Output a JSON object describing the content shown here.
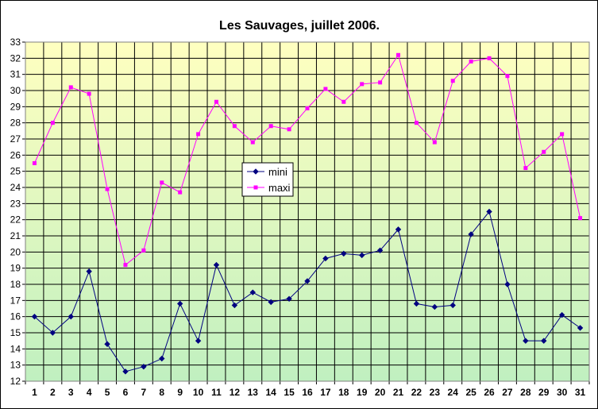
{
  "chart_data": {
    "type": "line",
    "title": "Les Sauvages, juillet 2006.",
    "xlabel": "",
    "ylabel": "",
    "x": [
      "1",
      "2",
      "3",
      "4",
      "5",
      "6",
      "7",
      "8",
      "9",
      "10",
      "11",
      "12",
      "13",
      "14",
      "15",
      "16",
      "17",
      "18",
      "19",
      "20",
      "21",
      "22",
      "23",
      "24",
      "25",
      "26",
      "27",
      "28",
      "29",
      "30",
      "31"
    ],
    "ylim": [
      12,
      33
    ],
    "y_ticks": [
      "12",
      "13",
      "14",
      "15",
      "16",
      "17",
      "18",
      "19",
      "20",
      "21",
      "22",
      "23",
      "24",
      "25",
      "26",
      "27",
      "28",
      "29",
      "30",
      "31",
      "32",
      "33"
    ],
    "grid": true,
    "legend_position": "center-left",
    "background_gradient": [
      "#FFFFC0",
      "#C0F0C0"
    ],
    "series": [
      {
        "name": "mini",
        "color": "#000080",
        "marker": "diamond",
        "values": [
          16.0,
          15.0,
          16.0,
          18.8,
          14.3,
          12.6,
          12.9,
          13.4,
          16.8,
          14.5,
          19.2,
          16.7,
          17.5,
          16.9,
          17.1,
          18.2,
          19.6,
          19.9,
          19.8,
          20.1,
          21.4,
          16.8,
          16.6,
          16.7,
          21.1,
          22.5,
          18.0,
          14.5,
          14.5,
          16.1,
          15.3
        ]
      },
      {
        "name": "maxi",
        "color": "#FF00FF",
        "marker": "square",
        "values": [
          25.5,
          28.0,
          30.2,
          29.8,
          23.9,
          19.2,
          20.1,
          24.3,
          23.7,
          27.3,
          29.3,
          27.8,
          26.8,
          27.8,
          27.6,
          28.9,
          30.1,
          29.3,
          30.4,
          30.5,
          32.2,
          28.0,
          26.8,
          30.6,
          31.8,
          32.0,
          30.9,
          25.2,
          26.2,
          27.3,
          22.1
        ]
      }
    ]
  }
}
